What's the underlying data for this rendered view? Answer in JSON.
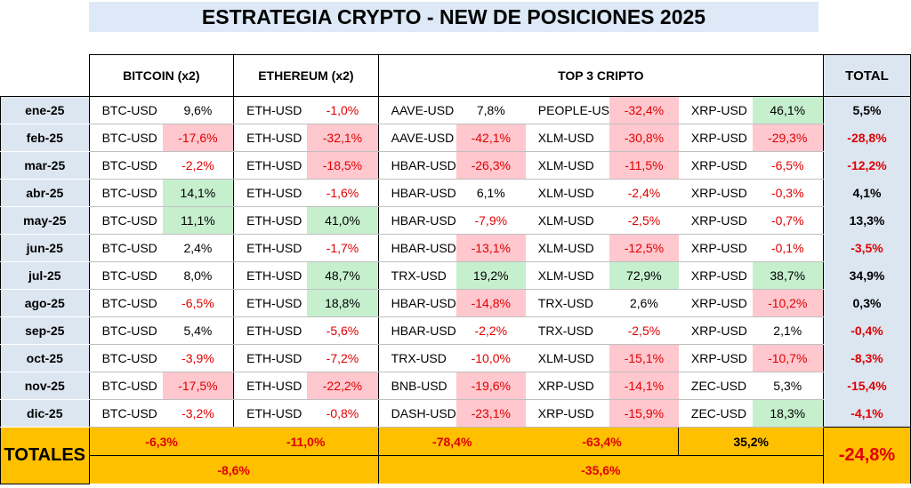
{
  "title": "ESTRATEGIA CRYPTO -  NEW DE POSICIONES 2025",
  "headers": {
    "bitcoin": "BITCOIN  (x2)",
    "ethereum": "ETHEREUM (x2)",
    "top3": "TOP 3 CRIPTO",
    "total": "TOTAL"
  },
  "rows": [
    {
      "month": "ene-25",
      "btc": {
        "sym": "BTC-USD",
        "pct": "9,6%",
        "color": "none"
      },
      "eth": {
        "sym": "ETH-USD",
        "pct": "-1,0%",
        "color": "none"
      },
      "c1": {
        "sym": "AAVE-USD",
        "pct": "7,8%",
        "color": "none"
      },
      "c2": {
        "sym": "PEOPLE-US",
        "pct": "-32,4%",
        "color": "red"
      },
      "c3": {
        "sym": "XRP-USD",
        "pct": "46,1%",
        "color": "green"
      },
      "total": "5,5%"
    },
    {
      "month": "feb-25",
      "btc": {
        "sym": "BTC-USD",
        "pct": "-17,6%",
        "color": "red"
      },
      "eth": {
        "sym": "ETH-USD",
        "pct": "-32,1%",
        "color": "red"
      },
      "c1": {
        "sym": "AAVE-USD",
        "pct": "-42,1%",
        "color": "red"
      },
      "c2": {
        "sym": "XLM-USD",
        "pct": "-30,8%",
        "color": "red"
      },
      "c3": {
        "sym": "XRP-USD",
        "pct": "-29,3%",
        "color": "red"
      },
      "total": "-28,8%"
    },
    {
      "month": "mar-25",
      "btc": {
        "sym": "BTC-USD",
        "pct": "-2,2%",
        "color": "none"
      },
      "eth": {
        "sym": "ETH-USD",
        "pct": "-18,5%",
        "color": "red"
      },
      "c1": {
        "sym": "HBAR-USD",
        "pct": "-26,3%",
        "color": "red"
      },
      "c2": {
        "sym": "XLM-USD",
        "pct": "-11,5%",
        "color": "red"
      },
      "c3": {
        "sym": "XRP-USD",
        "pct": "-6,5%",
        "color": "none"
      },
      "total": "-12,2%"
    },
    {
      "month": "abr-25",
      "btc": {
        "sym": "BTC-USD",
        "pct": "14,1%",
        "color": "green"
      },
      "eth": {
        "sym": "ETH-USD",
        "pct": "-1,6%",
        "color": "none"
      },
      "c1": {
        "sym": "HBAR-USD",
        "pct": "6,1%",
        "color": "none"
      },
      "c2": {
        "sym": "XLM-USD",
        "pct": "-2,4%",
        "color": "none"
      },
      "c3": {
        "sym": "XRP-USD",
        "pct": "-0,3%",
        "color": "none"
      },
      "total": "4,1%"
    },
    {
      "month": "may-25",
      "btc": {
        "sym": "BTC-USD",
        "pct": "11,1%",
        "color": "green"
      },
      "eth": {
        "sym": "ETH-USD",
        "pct": "41,0%",
        "color": "green"
      },
      "c1": {
        "sym": "HBAR-USD",
        "pct": "-7,9%",
        "color": "none"
      },
      "c2": {
        "sym": "XLM-USD",
        "pct": "-2,5%",
        "color": "none"
      },
      "c3": {
        "sym": "XRP-USD",
        "pct": "-0,7%",
        "color": "none"
      },
      "total": "13,3%"
    },
    {
      "month": "jun-25",
      "btc": {
        "sym": "BTC-USD",
        "pct": "2,4%",
        "color": "none"
      },
      "eth": {
        "sym": "ETH-USD",
        "pct": "-1,7%",
        "color": "none"
      },
      "c1": {
        "sym": "HBAR-USD",
        "pct": "-13,1%",
        "color": "red"
      },
      "c2": {
        "sym": "XLM-USD",
        "pct": "-12,5%",
        "color": "red"
      },
      "c3": {
        "sym": "XRP-USD",
        "pct": "-0,1%",
        "color": "none"
      },
      "total": "-3,5%"
    },
    {
      "month": "jul-25",
      "btc": {
        "sym": "BTC-USD",
        "pct": "8,0%",
        "color": "none"
      },
      "eth": {
        "sym": "ETH-USD",
        "pct": "48,7%",
        "color": "green"
      },
      "c1": {
        "sym": "TRX-USD",
        "pct": "19,2%",
        "color": "green"
      },
      "c2": {
        "sym": "XLM-USD",
        "pct": "72,9%",
        "color": "green"
      },
      "c3": {
        "sym": "XRP-USD",
        "pct": "38,7%",
        "color": "green"
      },
      "total": "34,9%"
    },
    {
      "month": "ago-25",
      "btc": {
        "sym": "BTC-USD",
        "pct": "-6,5%",
        "color": "none"
      },
      "eth": {
        "sym": "ETH-USD",
        "pct": "18,8%",
        "color": "green"
      },
      "c1": {
        "sym": "HBAR-USD",
        "pct": "-14,8%",
        "color": "red"
      },
      "c2": {
        "sym": "TRX-USD",
        "pct": "2,6%",
        "color": "none"
      },
      "c3": {
        "sym": "XRP-USD",
        "pct": "-10,2%",
        "color": "red"
      },
      "total": "0,3%"
    },
    {
      "month": "sep-25",
      "btc": {
        "sym": "BTC-USD",
        "pct": "5,4%",
        "color": "none"
      },
      "eth": {
        "sym": "ETH-USD",
        "pct": "-5,6%",
        "color": "none"
      },
      "c1": {
        "sym": "HBAR-USD",
        "pct": "-2,2%",
        "color": "none"
      },
      "c2": {
        "sym": "TRX-USD",
        "pct": "-2,5%",
        "color": "none"
      },
      "c3": {
        "sym": "XRP-USD",
        "pct": "2,1%",
        "color": "none"
      },
      "total": "-0,4%"
    },
    {
      "month": "oct-25",
      "btc": {
        "sym": "BTC-USD",
        "pct": "-3,9%",
        "color": "none"
      },
      "eth": {
        "sym": "ETH-USD",
        "pct": "-7,2%",
        "color": "none"
      },
      "c1": {
        "sym": "TRX-USD",
        "pct": "-10,0%",
        "color": "none"
      },
      "c2": {
        "sym": "XLM-USD",
        "pct": "-15,1%",
        "color": "red"
      },
      "c3": {
        "sym": "XRP-USD",
        "pct": "-10,7%",
        "color": "red"
      },
      "total": "-8,3%"
    },
    {
      "month": "nov-25",
      "btc": {
        "sym": "BTC-USD",
        "pct": "-17,5%",
        "color": "red"
      },
      "eth": {
        "sym": "ETH-USD",
        "pct": "-22,2%",
        "color": "red"
      },
      "c1": {
        "sym": "BNB-USD",
        "pct": "-19,6%",
        "color": "red"
      },
      "c2": {
        "sym": "XRP-USD",
        "pct": "-14,1%",
        "color": "red"
      },
      "c3": {
        "sym": "ZEC-USD",
        "pct": "5,3%",
        "color": "none"
      },
      "total": "-15,4%"
    },
    {
      "month": "dic-25",
      "btc": {
        "sym": "BTC-USD",
        "pct": "-3,2%",
        "color": "none"
      },
      "eth": {
        "sym": "ETH-USD",
        "pct": "-0,8%",
        "color": "none"
      },
      "c1": {
        "sym": "DASH-USD",
        "pct": "-23,1%",
        "color": "red"
      },
      "c2": {
        "sym": "XRP-USD",
        "pct": "-15,9%",
        "color": "red"
      },
      "c3": {
        "sym": "ZEC-USD",
        "pct": "18,3%",
        "color": "green"
      },
      "total": "-4,1%"
    }
  ],
  "totals": {
    "label": "TOTALES",
    "btc": "-6,3%",
    "eth": "-11,0%",
    "c1": "-78,4%",
    "c2": "-63,4%",
    "c3": "35,2%",
    "btc_eth_combined": "-8,6%",
    "top3_combined": "-35,6%",
    "grand_total": "-24,8%"
  },
  "colors": {
    "header_blue": "#dce6f1",
    "title_blue": "#dde9f6",
    "positive_fill": "#c6efce",
    "negative_fill": "#ffc7ce",
    "negative_text": "#e00000",
    "totals_fill": "#ffc000"
  }
}
